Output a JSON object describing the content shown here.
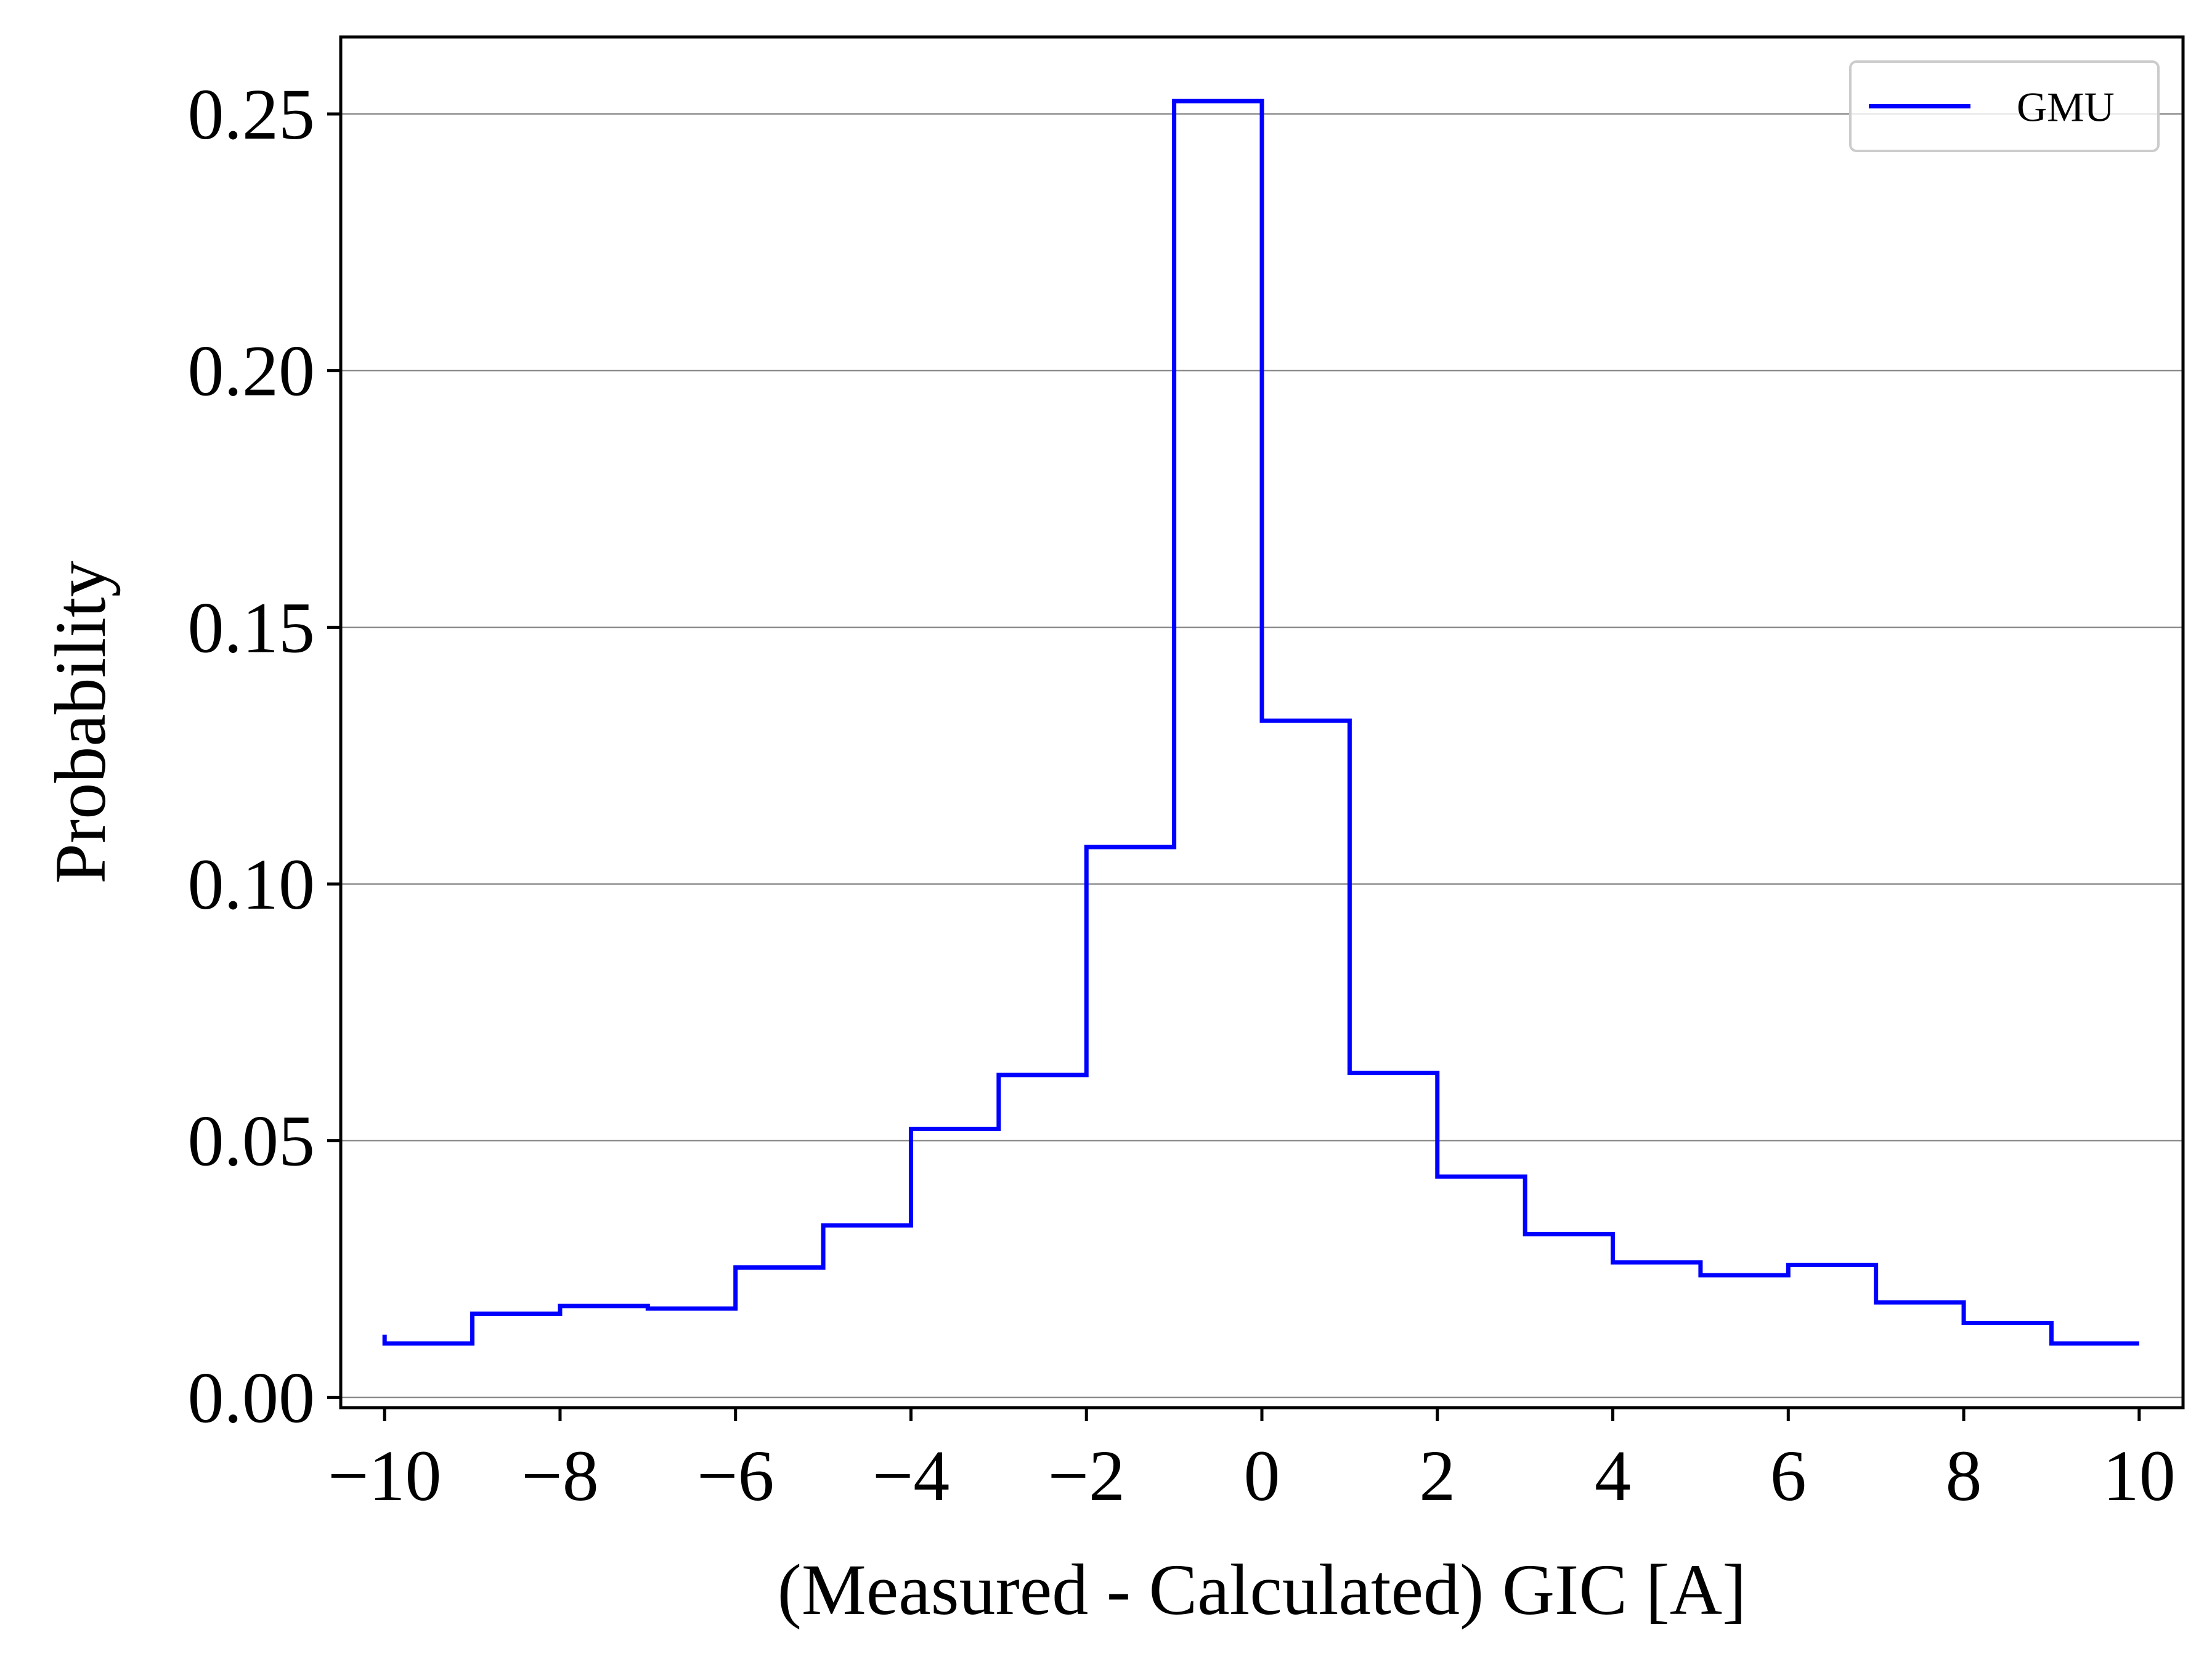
{
  "chart_data": {
    "type": "line",
    "subtype": "step-histogram",
    "title": "",
    "xlabel": "(Measured - Calculated) GIC [A]",
    "ylabel": "Probability",
    "xlim": [
      -10.5,
      10.5
    ],
    "ylim": [
      -0.002,
      0.265
    ],
    "x_ticks": [
      -10,
      -8,
      -6,
      -4,
      -2,
      0,
      2,
      4,
      6,
      8,
      10
    ],
    "x_tick_labels": [
      "−10",
      "−8",
      "−6",
      "−4",
      "−2",
      "0",
      "2",
      "4",
      "6",
      "8",
      "10"
    ],
    "y_ticks": [
      0.0,
      0.05,
      0.1,
      0.15,
      0.2,
      0.25
    ],
    "y_tick_labels": [
      "0.00",
      "0.05",
      "0.10",
      "0.15",
      "0.20",
      "0.25"
    ],
    "grid": "horizontal",
    "legend": {
      "position": "top-right"
    },
    "series": [
      {
        "name": "GMU",
        "color": "#0000ff",
        "bin_edges": [
          -10,
          -9,
          -8,
          -7,
          -6,
          -5,
          -4,
          -3,
          -2,
          -1,
          0,
          1,
          2,
          3,
          4,
          5,
          6,
          7,
          8,
          9,
          10
        ],
        "values": [
          0.0105,
          0.0163,
          0.0178,
          0.0173,
          0.0253,
          0.0335,
          0.0523,
          0.0628,
          0.1072,
          0.2525,
          0.1318,
          0.0632,
          0.043,
          0.0318,
          0.0263,
          0.0238,
          0.0258,
          0.0185,
          0.0145,
          0.0105
        ],
        "start_value": 0.0122
      }
    ]
  }
}
